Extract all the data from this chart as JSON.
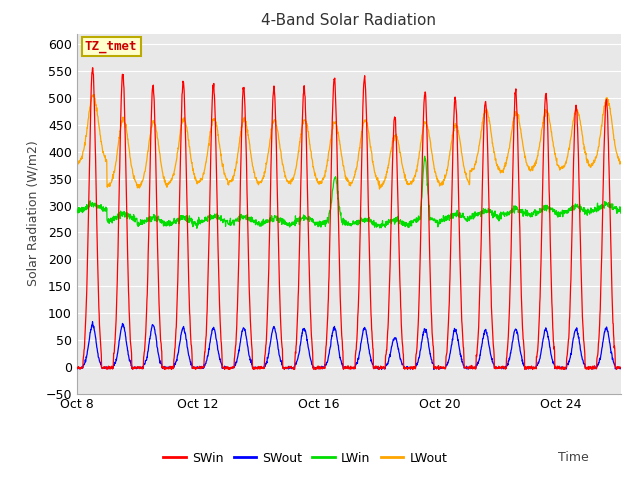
{
  "title": "4-Band Solar Radiation",
  "xlabel": "Time",
  "ylabel": "Solar Radiation (W/m2)",
  "ylim": [
    -50,
    620
  ],
  "yticks": [
    -50,
    0,
    50,
    100,
    150,
    200,
    250,
    300,
    350,
    400,
    450,
    500,
    550,
    600
  ],
  "plot_bg_color": "#e8e8e8",
  "legend_labels": [
    "SWin",
    "SWout",
    "LWin",
    "LWout"
  ],
  "legend_colors": [
    "#ff0000",
    "#0000ff",
    "#00dd00",
    "#ffa500"
  ],
  "annotation_text": "TZ_tmet",
  "annotation_bg": "#ffffcc",
  "annotation_border": "#bbaa00",
  "annotation_text_color": "#cc0000",
  "xtick_positions": [
    8,
    12,
    16,
    20,
    24
  ],
  "xtick_labels": [
    "Oct 8",
    "Oct 12",
    "Oct 16",
    "Oct 20",
    "Oct 24"
  ],
  "xlim": [
    8,
    26
  ],
  "grid_color": "#ffffff",
  "sw_peaks": [
    555,
    545,
    520,
    530,
    525,
    520,
    520,
    520,
    535,
    540,
    465,
    510,
    500,
    495,
    510,
    510,
    487,
    495
  ],
  "swout_peaks": [
    78,
    78,
    78,
    72,
    72,
    72,
    73,
    72,
    72,
    72,
    55,
    70,
    68,
    68,
    70,
    70,
    70,
    72
  ],
  "lwin_base": [
    290,
    272,
    265,
    265,
    268,
    267,
    265,
    265,
    265,
    263,
    262,
    268,
    272,
    278,
    282,
    283,
    286,
    290
  ],
  "lwout_peaks": [
    505,
    460,
    455,
    460,
    462,
    460,
    458,
    460,
    455,
    460,
    430,
    455,
    450,
    478,
    473,
    476,
    478,
    498
  ],
  "lwout_nights": [
    378,
    335,
    332,
    340,
    342,
    340,
    340,
    340,
    340,
    338,
    335,
    340,
    338,
    362,
    362,
    365,
    368,
    375
  ]
}
